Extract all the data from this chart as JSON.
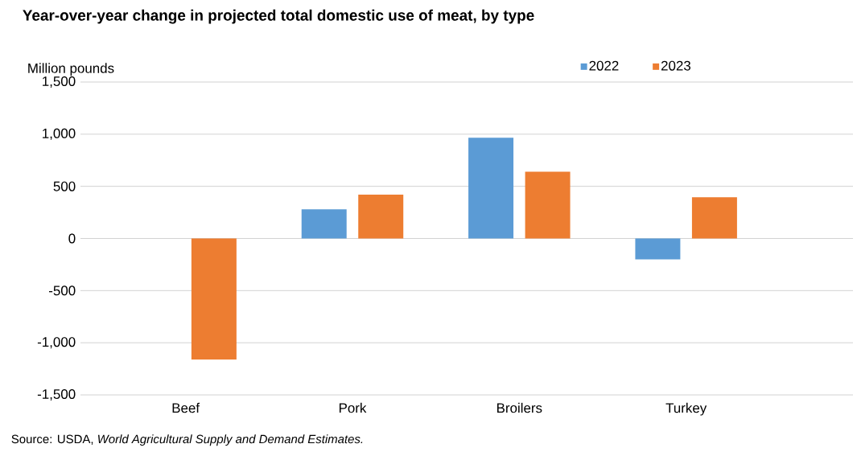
{
  "chart_data": {
    "type": "bar",
    "title": "Year-over-year change in projected total domestic use of meat, by type",
    "ylabel": "Million pounds",
    "categories": [
      "Beef",
      "Pork",
      "Broilers",
      "Turkey"
    ],
    "series": [
      {
        "name": "2022",
        "color": "#5b9bd5",
        "values": [
          null,
          280,
          965,
          -200
        ]
      },
      {
        "name": "2023",
        "color": "#ed7d31",
        "values": [
          -1160,
          420,
          640,
          395
        ]
      }
    ],
    "ylim": [
      -1500,
      1500
    ],
    "yticks": [
      {
        "value": -1500,
        "label": "-1,500"
      },
      {
        "value": -1000,
        "label": "-1,000"
      },
      -500,
      0,
      500,
      {
        "value": 1000,
        "label": "1,000"
      },
      {
        "value": 1500,
        "label": "1,500"
      }
    ],
    "grid": "y",
    "legend": "top",
    "annotations": [
      "Source: USDA, *World Agricultural Supply and Demand Estimates.*"
    ]
  }
}
